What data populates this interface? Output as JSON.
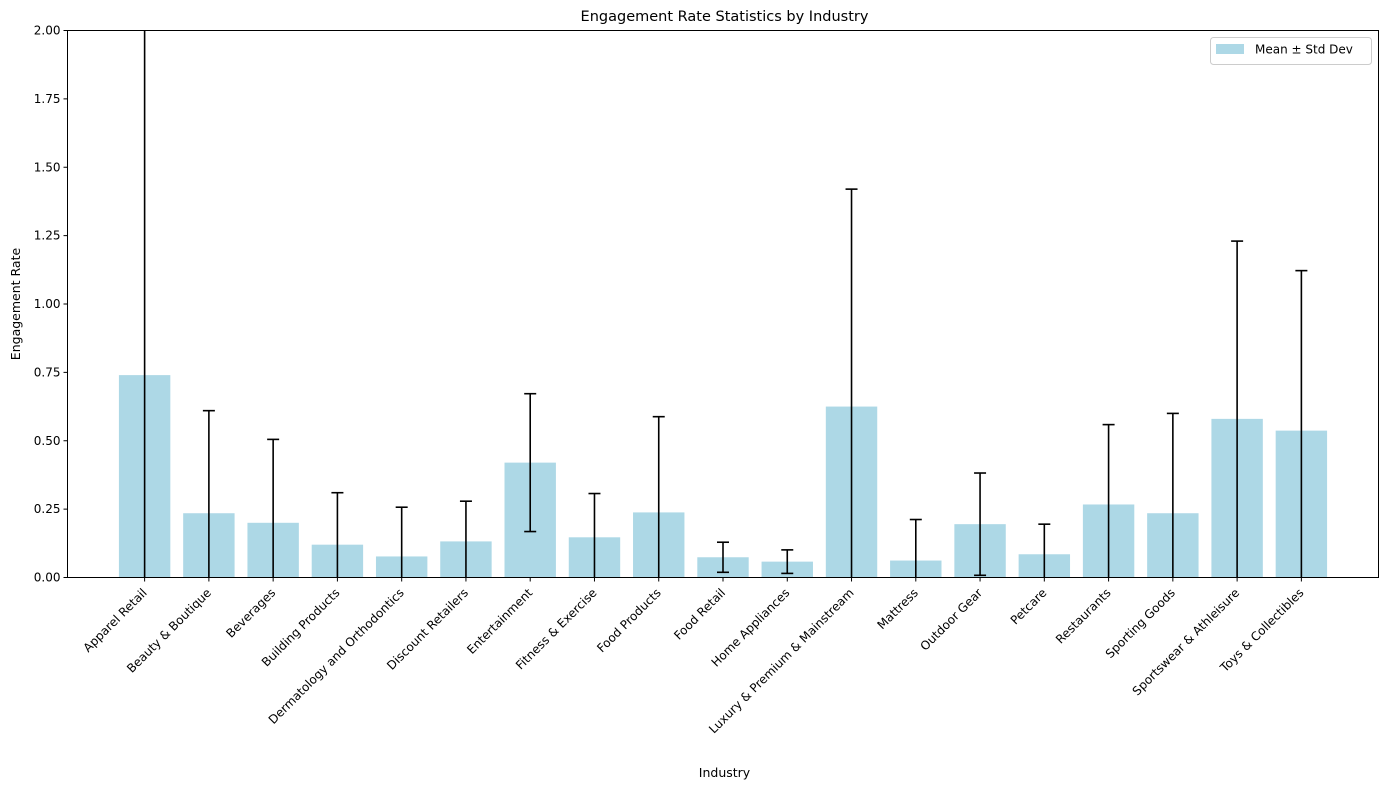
{
  "chart_data": {
    "type": "bar",
    "title": "Engagement Rate Statistics by Industry",
    "xlabel": "Industry",
    "ylabel": "Engagement Rate",
    "ylim": [
      0,
      2.0
    ],
    "yticks": [
      "0.00",
      "0.25",
      "0.50",
      "0.75",
      "1.00",
      "1.25",
      "1.50",
      "1.75",
      "2.00"
    ],
    "grid": false,
    "legend": {
      "placement": "top-right",
      "label": "Mean ± Std Dev"
    },
    "colors": {
      "bar": "#add8e6",
      "error": "#000000",
      "axis": "#000000"
    },
    "categories": [
      "Apparel Retail",
      "Beauty & Boutique",
      "Beverages",
      "Building Products",
      "Dermatology and Orthodontics",
      "Discount Retailers",
      "Entertainment",
      "Fitness & Exercise",
      "Food Products",
      "Food Retail",
      "Home Appliances",
      "Luxury & Premium & Mainstream",
      "Mattress",
      "Outdoor Gear",
      "Petcare",
      "Restaurants",
      "Sporting Goods",
      "Sportswear & Athleisure",
      "Toys & Collectibles"
    ],
    "series": [
      {
        "values": [
          0.74,
          0.235,
          0.2,
          0.12,
          0.077,
          0.132,
          0.42,
          0.147,
          0.238,
          0.074,
          0.058,
          0.625,
          0.062,
          0.195,
          0.085,
          0.267,
          0.235,
          0.58,
          0.537
        ],
        "std": [
          2.15,
          0.375,
          0.305,
          0.19,
          0.18,
          0.147,
          0.252,
          0.16,
          0.35,
          0.055,
          0.043,
          0.795,
          0.15,
          0.187,
          0.11,
          0.292,
          0.365,
          0.65,
          0.585
        ]
      }
    ]
  }
}
